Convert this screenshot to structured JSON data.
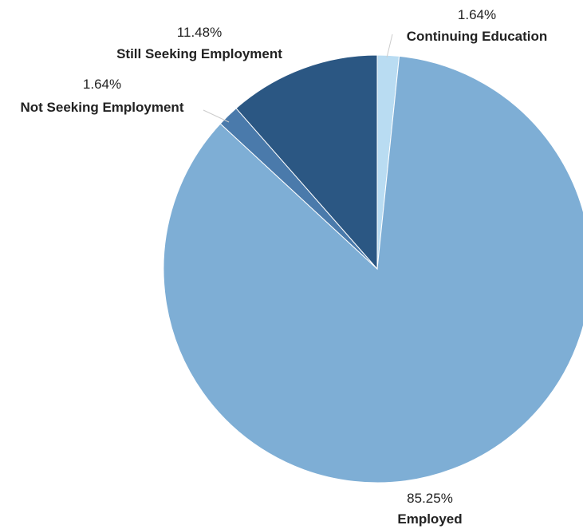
{
  "chart_data": {
    "type": "pie",
    "title": "",
    "start_angle_deg": 0,
    "direction": "clockwise",
    "slices": [
      {
        "label": "Continuing Education",
        "value": 1.64,
        "display": "1.64%",
        "color": "#b9dcf2"
      },
      {
        "label": "Employed",
        "value": 85.25,
        "display": "85.25%",
        "color": "#7eaed5"
      },
      {
        "label": "Not Seeking Employment",
        "value": 1.64,
        "display": "1.64%",
        "color": "#4a7aab"
      },
      {
        "label": "Still Seeking Employment",
        "value": 11.48,
        "display": "11.48%",
        "color": "#2b5783"
      }
    ]
  }
}
